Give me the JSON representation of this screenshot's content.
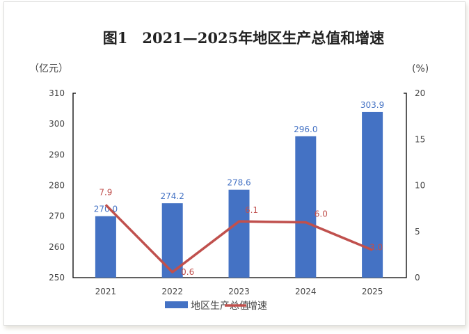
{
  "chart_data": {
    "type": "bar",
    "title": "图1　2021—2025年地区生产总值和增速",
    "categories": [
      "2021",
      "2022",
      "2023",
      "2024",
      "2025"
    ],
    "y_left": {
      "label": "（亿元）",
      "lim": [
        250,
        310
      ],
      "ticks": [
        "250",
        "260",
        "270",
        "280",
        "290",
        "300",
        "310"
      ]
    },
    "y_right": {
      "label": "(%)",
      "lim": [
        0,
        20
      ],
      "ticks": [
        "0",
        "5",
        "10",
        "15",
        "20"
      ]
    },
    "series": [
      {
        "name": "地区生产总值",
        "type": "bar",
        "axis": "left",
        "color": "#4472c4",
        "values": [
          270.0,
          274.2,
          278.6,
          296.0,
          303.9
        ],
        "labels": [
          "270.0",
          "274.2",
          "278.6",
          "296.0",
          "303.9"
        ]
      },
      {
        "name": "增速",
        "type": "line",
        "axis": "right",
        "color": "#c0504d",
        "values": [
          7.9,
          0.6,
          6.1,
          6.0,
          3.0
        ],
        "labels": [
          "7.9",
          "0.6",
          "6.1",
          "6.0",
          "3.0"
        ]
      }
    ],
    "legend": "bottom",
    "grid": false
  }
}
